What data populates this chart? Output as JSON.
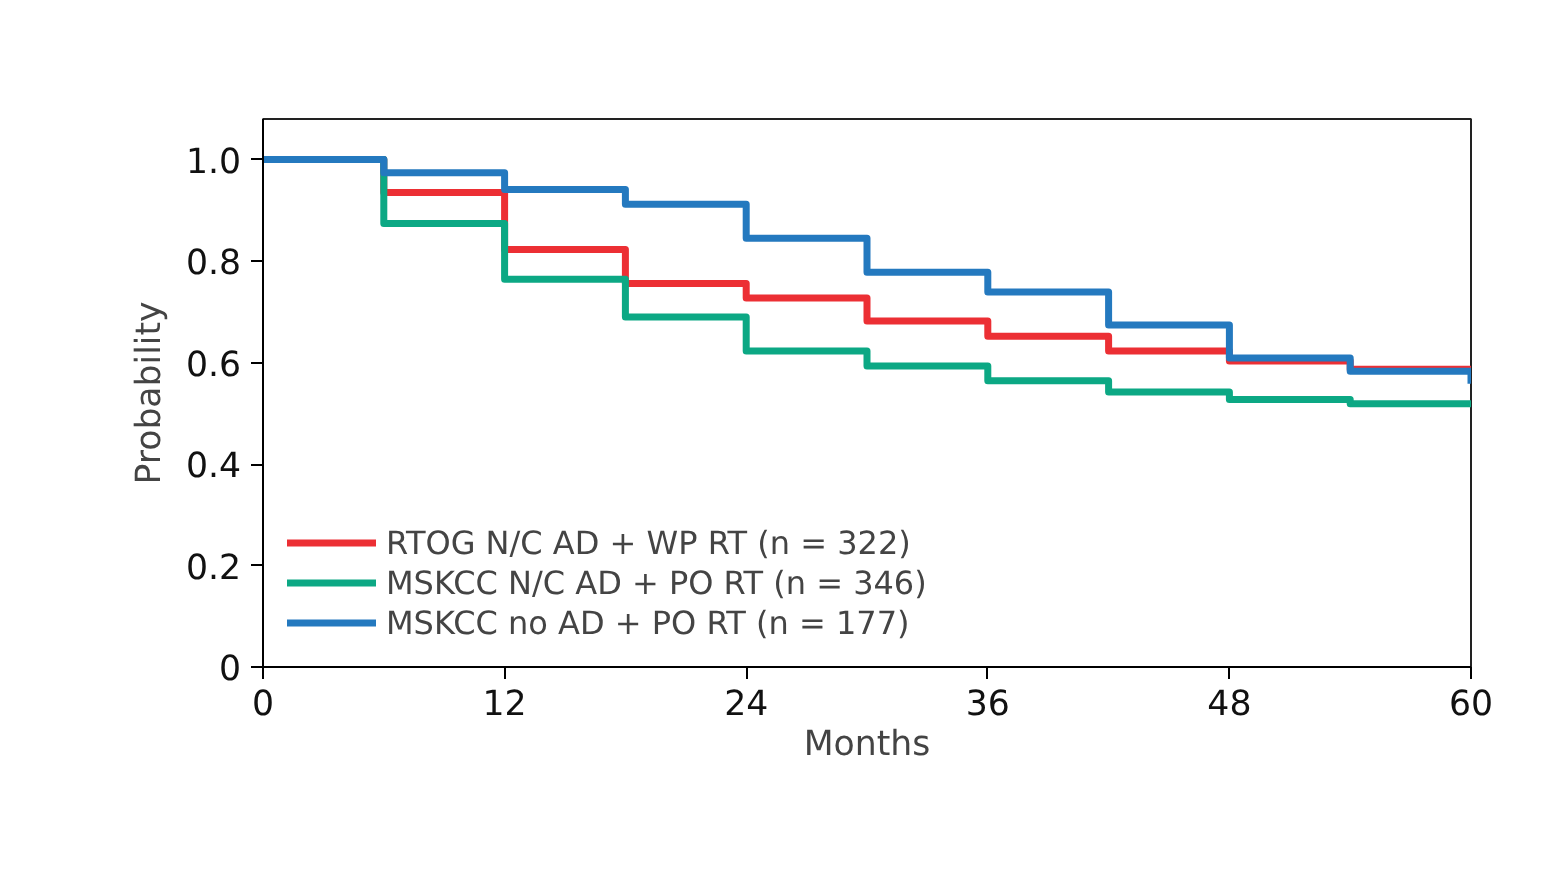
{
  "chart_data": {
    "type": "step",
    "xlabel": "Months",
    "ylabel": "Probability",
    "x": [
      0,
      6,
      12,
      18,
      24,
      30,
      36,
      42,
      48,
      54,
      60
    ],
    "series": [
      {
        "name": "RTOG N/C AD + WP RT (n = 322)",
        "color": "#ec2f34",
        "values": [
          1.0,
          0.935,
          0.823,
          0.756,
          0.727,
          0.682,
          0.652,
          0.623,
          0.603,
          0.587,
          0.587
        ]
      },
      {
        "name": "MSKCC N/C AD + PO RT (n = 346)",
        "color": "#0ca884",
        "values": [
          1.0,
          0.874,
          0.764,
          0.69,
          0.623,
          0.593,
          0.564,
          0.542,
          0.527,
          0.519,
          0.519
        ]
      },
      {
        "name": "MSKCC no AD + PO RT (n = 177)",
        "color": "#2479bf",
        "values": [
          1.0,
          0.974,
          0.941,
          0.912,
          0.845,
          0.778,
          0.739,
          0.674,
          0.609,
          0.583,
          0.558
        ]
      }
    ],
    "xlim": [
      0,
      60
    ],
    "xticks": [
      0,
      12,
      24,
      36,
      48,
      60
    ],
    "ylim": [
      0,
      1.08
    ],
    "yticks": [
      0,
      0.2,
      0.4,
      0.6,
      0.8,
      {
        "value": 1.0,
        "label": "1.0"
      }
    ],
    "grid": false,
    "legend": "bottom left",
    "line_style": "solid",
    "marker": "none"
  }
}
